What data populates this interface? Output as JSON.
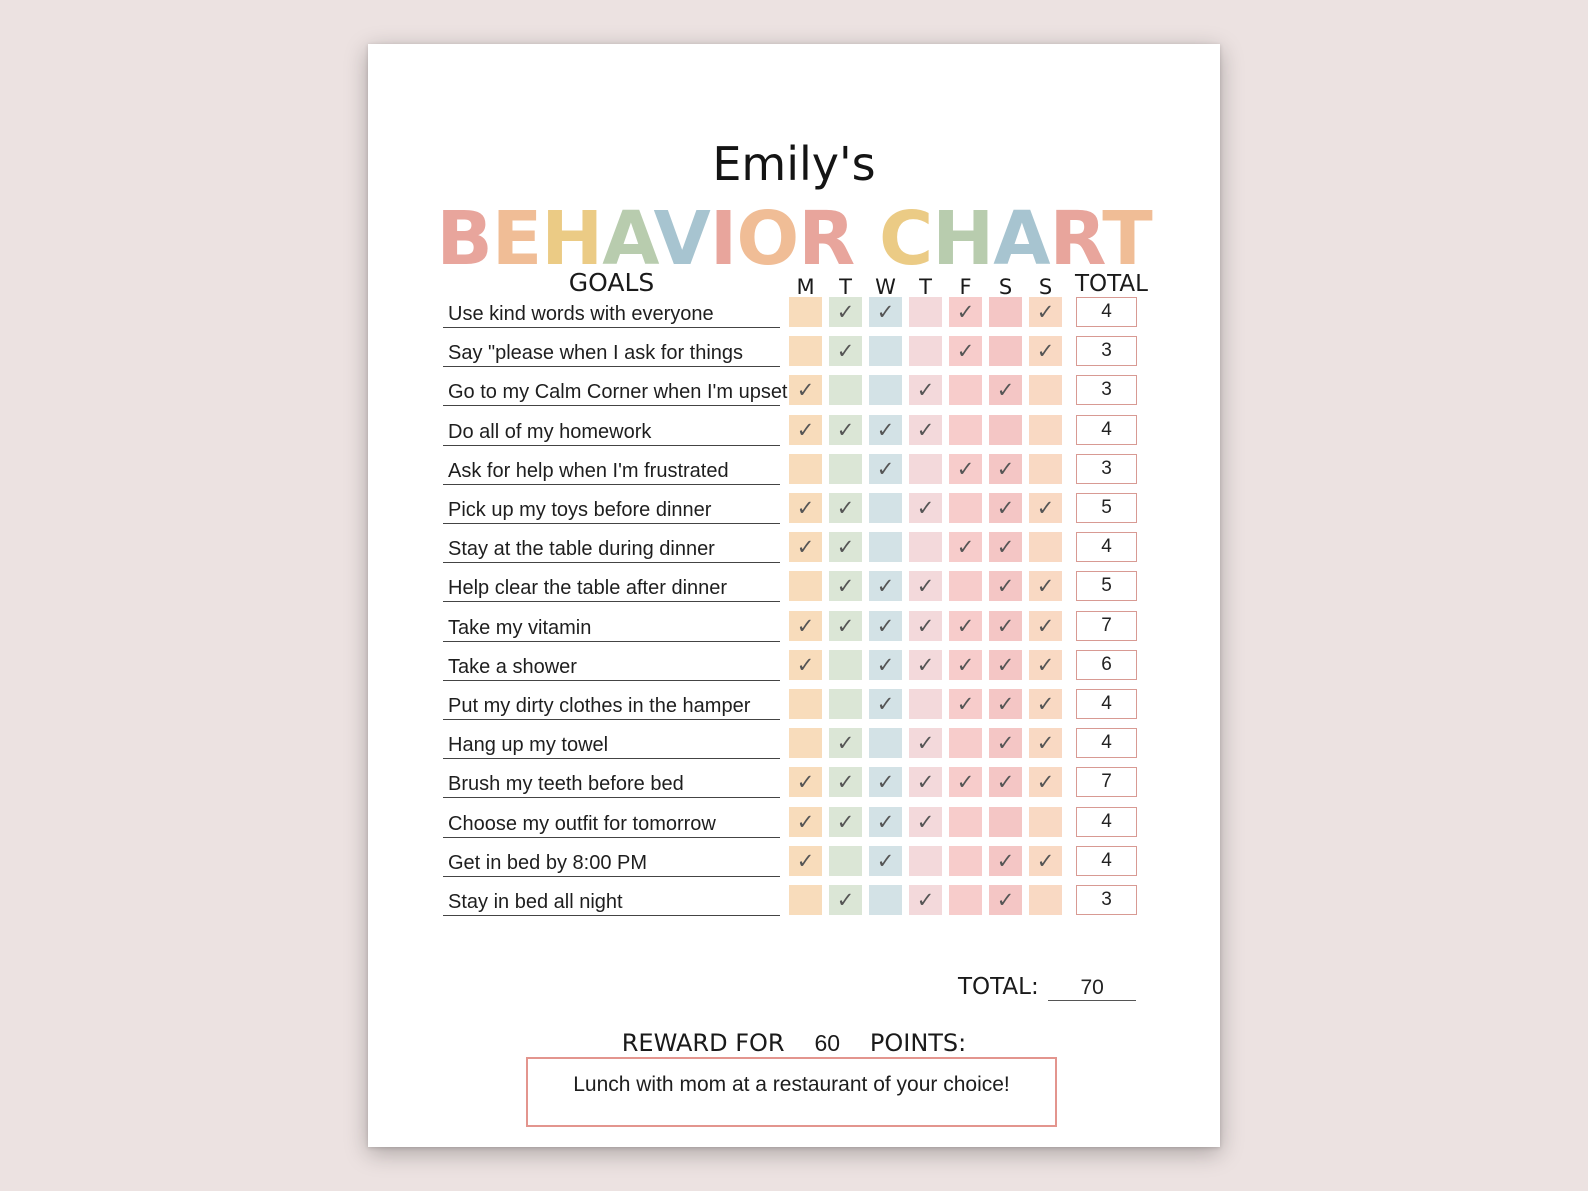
{
  "owner_name": "Emily's",
  "chart_title": "BEHAVIOR CHART",
  "title_letter_colors": [
    "#e8a59c",
    "#f0bd96",
    "#ebcb85",
    "#b8ccae",
    "#a7c4d0",
    "#e8a59c",
    "#f0bd96",
    "#e8a59c",
    "#ebcb85",
    "#b8ccae",
    "#a7c4d0",
    "#e8a59c",
    "#f0bd96",
    "#ebcb85"
  ],
  "goals_header": "GOALS",
  "day_headers": [
    "M",
    "T",
    "W",
    "T",
    "F",
    "S",
    "S"
  ],
  "total_header": "TOTAL",
  "day_colors": [
    "#f8dcbb",
    "#dbe6d6",
    "#d3e2e6",
    "#f3d9db",
    "#f7cccb",
    "#f4c6c5",
    "#f9d9c3"
  ],
  "check_glyph": "✓",
  "rows": [
    {
      "goal": "Use kind words with everyone",
      "checks": [
        0,
        1,
        1,
        0,
        1,
        0,
        1
      ],
      "total": "4"
    },
    {
      "goal": "Say \"please when I ask for things",
      "checks": [
        0,
        1,
        0,
        0,
        1,
        0,
        1
      ],
      "total": "3"
    },
    {
      "goal": "Go to my Calm Corner when I'm upset",
      "checks": [
        1,
        0,
        0,
        1,
        0,
        1,
        0
      ],
      "total": "3"
    },
    {
      "goal": "Do all of my homework",
      "checks": [
        1,
        1,
        1,
        1,
        0,
        0,
        0
      ],
      "total": "4"
    },
    {
      "goal": "Ask for help when I'm frustrated",
      "checks": [
        0,
        0,
        1,
        0,
        1,
        1,
        0
      ],
      "total": "3"
    },
    {
      "goal": "Pick up my toys before dinner",
      "checks": [
        1,
        1,
        0,
        1,
        0,
        1,
        1
      ],
      "total": "5"
    },
    {
      "goal": "Stay at the table during dinner",
      "checks": [
        1,
        1,
        0,
        0,
        1,
        1,
        0
      ],
      "total": "4"
    },
    {
      "goal": "Help clear the table after dinner",
      "checks": [
        0,
        1,
        1,
        1,
        0,
        1,
        1
      ],
      "total": "5"
    },
    {
      "goal": "Take my vitamin",
      "checks": [
        1,
        1,
        1,
        1,
        1,
        1,
        1
      ],
      "total": "7"
    },
    {
      "goal": "Take a shower",
      "checks": [
        1,
        0,
        1,
        1,
        1,
        1,
        1
      ],
      "total": "6"
    },
    {
      "goal": "Put my dirty clothes in the hamper",
      "checks": [
        0,
        0,
        1,
        0,
        1,
        1,
        1
      ],
      "total": "4"
    },
    {
      "goal": "Hang up my towel",
      "checks": [
        0,
        1,
        0,
        1,
        0,
        1,
        1
      ],
      "total": "4"
    },
    {
      "goal": "Brush my teeth before bed",
      "checks": [
        1,
        1,
        1,
        1,
        1,
        1,
        1
      ],
      "total": "7"
    },
    {
      "goal": "Choose my outfit for tomorrow",
      "checks": [
        1,
        1,
        1,
        1,
        0,
        0,
        0
      ],
      "total": "4"
    },
    {
      "goal": "Get in bed by 8:00 PM",
      "checks": [
        1,
        0,
        1,
        0,
        0,
        1,
        1
      ],
      "total": "4"
    },
    {
      "goal": "Stay in bed all night",
      "checks": [
        0,
        1,
        0,
        1,
        0,
        1,
        0
      ],
      "total": "3"
    }
  ],
  "grand_total_label": "TOTAL:",
  "grand_total_value": "70",
  "reward_prefix": "REWARD FOR",
  "reward_points": "60",
  "reward_suffix": "POINTS:",
  "reward_text": "Lunch with mom at a restaurant of your choice!",
  "accent_border": "#e3958e"
}
